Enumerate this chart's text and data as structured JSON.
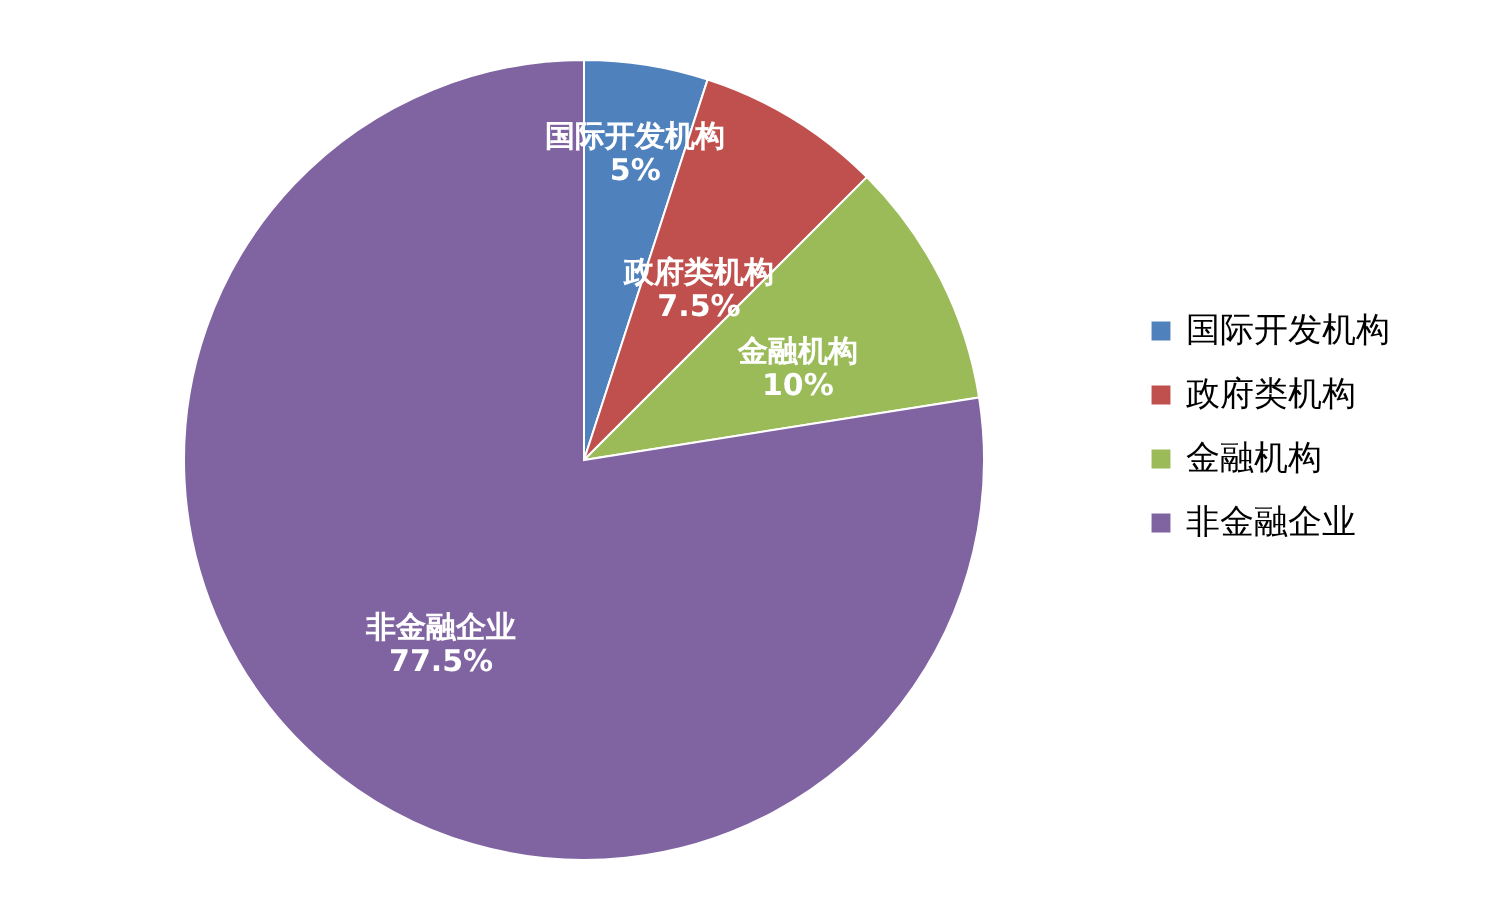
{
  "chart_data": {
    "type": "pie",
    "categories": [
      "国际开发机构",
      "政府类机构",
      "金融机构",
      "非金融企业"
    ],
    "values": [
      5,
      7.5,
      10,
      77.5
    ],
    "value_labels": [
      "5%",
      "7.5%",
      "10%",
      "77.5%"
    ],
    "colors": [
      "#4f81bd",
      "#c0504d",
      "#9bbb59",
      "#8064a2"
    ],
    "legend": "right"
  }
}
